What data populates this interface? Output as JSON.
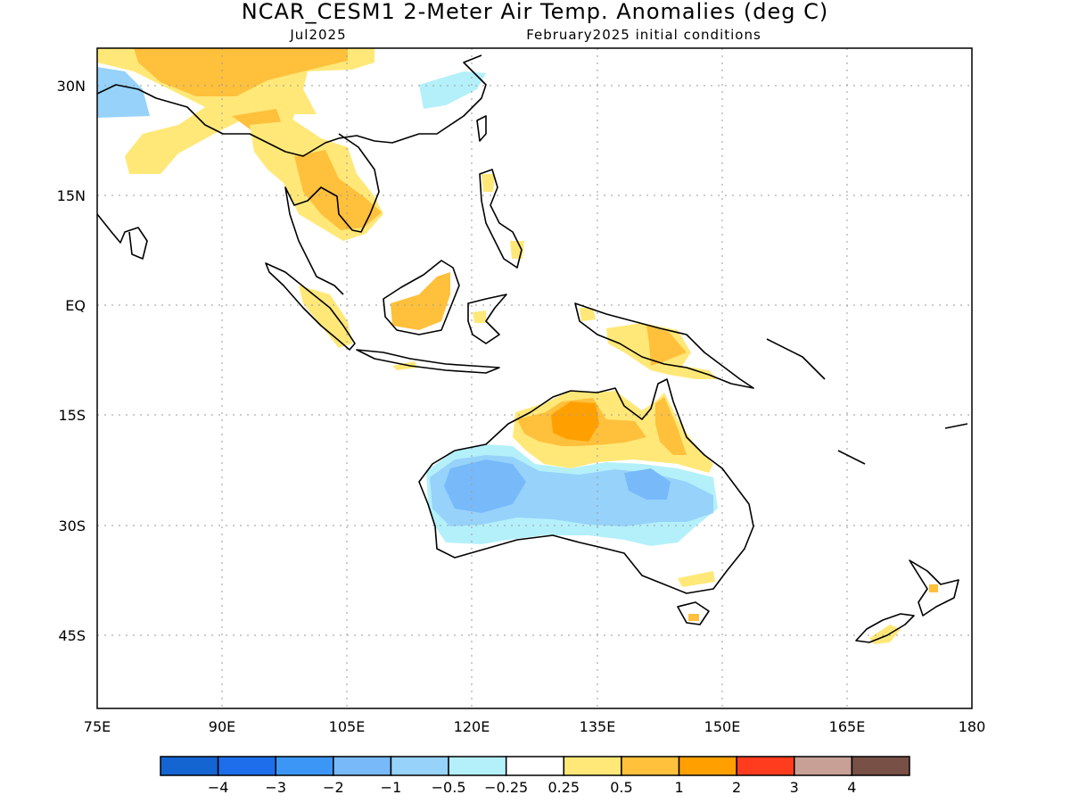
{
  "title": "NCAR_CESM1 2-Meter Air Temp. Anomalies (deg C)",
  "subtitle_left": "Jul2025",
  "subtitle_right": "February2025 initial conditions",
  "map": {
    "lon_range": [
      75,
      180
    ],
    "lat_range": [
      -55,
      35
    ],
    "x_ticks": [
      {
        "value": 75,
        "label": "75E"
      },
      {
        "value": 90,
        "label": "90E"
      },
      {
        "value": 105,
        "label": "105E"
      },
      {
        "value": 120,
        "label": "120E"
      },
      {
        "value": 135,
        "label": "135E"
      },
      {
        "value": 150,
        "label": "150E"
      },
      {
        "value": 165,
        "label": "165E"
      },
      {
        "value": 180,
        "label": "180"
      }
    ],
    "y_ticks": [
      {
        "value": 30,
        "label": "30N"
      },
      {
        "value": 15,
        "label": "15N"
      },
      {
        "value": 0,
        "label": "EQ"
      },
      {
        "value": -15,
        "label": "15S"
      },
      {
        "value": -30,
        "label": "30S"
      },
      {
        "value": -45,
        "label": "45S"
      }
    ],
    "grid": true
  },
  "colorbar": {
    "colors": [
      "#1464d2",
      "#1e6eeb",
      "#3c96f5",
      "#78b9fa",
      "#96d2fa",
      "#b4f0fa",
      "#ffffff",
      "#ffe878",
      "#ffc03c",
      "#ffa000",
      "#ff3c1e",
      "#c8a096",
      "#785046"
    ],
    "labels": [
      "-4",
      "-3",
      "-2",
      "-1",
      "-0.5",
      "-0.25",
      "0.25",
      "0.5",
      "1",
      "2",
      "3",
      "4"
    ]
  },
  "anomalies": [
    {
      "region": "Australia interior",
      "level": -1
    },
    {
      "region": "Australia inner core",
      "level": -2
    },
    {
      "region": "Northern Australia",
      "level": 1
    },
    {
      "region": "Top End",
      "level": 2
    },
    {
      "region": "Indochina",
      "level": 0.5
    },
    {
      "region": "Tibet / Himalaya",
      "level": 1
    },
    {
      "region": "New Guinea",
      "level": 1
    },
    {
      "region": "Borneo",
      "level": 0.5
    },
    {
      "region": "Northwest corner",
      "level": -0.5
    }
  ]
}
